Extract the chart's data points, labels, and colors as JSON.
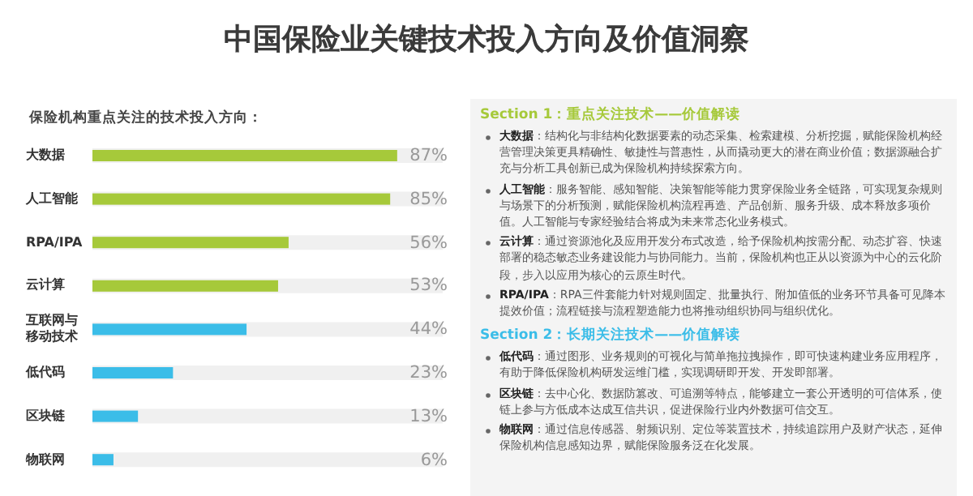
{
  "chart_data": [
    {
      "type": "bar",
      "orientation": "horizontal",
      "title": "中国保险业关键技术投入方向及价值洞察",
      "subtitle": "保险机构重点关注的技术投入方向：",
      "categories": [
        "大数据",
        "人工智能",
        "RPA/IPA",
        "云计算",
        "互联网与移动技术",
        "低代码",
        "区块链",
        "物联网"
      ],
      "values": [
        87,
        85,
        56,
        53,
        44,
        23,
        13,
        6
      ],
      "colors": [
        "#a6c93a",
        "#a6c93a",
        "#a6c93a",
        "#a6c93a",
        "#3bbde8",
        "#3bbde8",
        "#3bbde8",
        "#3bbde8"
      ],
      "value_labels": [
        "87%",
        "85%",
        "56%",
        "53%",
        "44%",
        "23%",
        "13%",
        "6%"
      ],
      "xlim": [
        0,
        100
      ]
    },
    {
      "type": "other",
      "title": "Section 1：重点关注技术——价值解读",
      "color": "#a6c93a",
      "annotations": [
        "**大数据**：结构化与非结构化数据要素的动态采集、检索建模、分析挖掘，赋能保险机构经营管理决策更具精确性、敏捷性与普惠性，从而撬动更大的潜在商业价值；数据源融合扩充与分析工具创新已成为保险机构持续探索方向。",
        "**人工智能**：服务智能、感知智能、决策智能等能力贯穿保险业务全链路，可实现复杂规则与场景下的分析预测，赋能保险机构流程再造、产品创新、服务升级、成本释放多项价值。人工智能与专家经验结合将成为未来常态化业务模式。",
        "**云计算**：通过资源池化及应用开发分布式改造，给予保险机构按需分配、动态扩容、快速部署的稳态敏态业务建设能力与协同能力。当前，保险机构也正从以资源为中心的云化阶段，步入以应用为核心的云原生时代。",
        "**RPA/IPA**：RPA三件套能力针对规则固定、批量执行、附加值低的业务环节具备可见降本提效价值；流程链接与流程塑造能力也将推动组织协同与组织优化。"
      ]
    },
    {
      "type": "other",
      "title": "Section 2：长期关注技术——价值解读",
      "color": "#3bbde8",
      "annotations": [
        "**低代码**：通过图形、业务规则的可视化与简单拖拉拽操作，即可快速构建业务应用程序，有助于降低保险机构研发运维门槛，实现调研即开发、开发即部署。",
        "**区块链**：去中心化、数据防篡改、可追溯等特点，能够建立一套公开透明的可信体系，使链上参与方低成本达成互信共识，促进保险行业内外数据可信交互。",
        "**物联网**：通过信息传感器、射频识别、定位等装置技术，持续追踪用户及财产状态，延伸保险机构信息感知边界，赋能保险服务泛在化发展。"
      ]
    }
  ]
}
